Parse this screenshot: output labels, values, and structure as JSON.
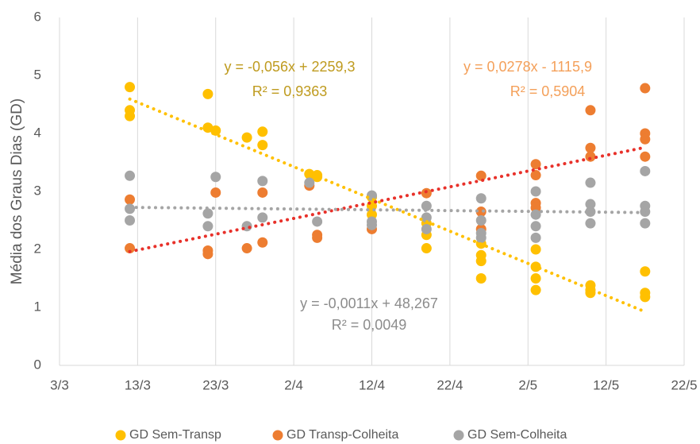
{
  "chart_data": {
    "type": "scatter",
    "y_label": "Média dos Graus Dias (GD)",
    "xlim": [
      "3/3",
      "22/5"
    ],
    "xticks": [
      "3/3",
      "13/3",
      "23/3",
      "2/4",
      "12/4",
      "22/4",
      "2/5",
      "12/5",
      "22/5"
    ],
    "ylim": [
      0,
      6
    ],
    "yticks": [
      0,
      1,
      2,
      3,
      4,
      5,
      6
    ],
    "grid": "x",
    "legend": "bottom",
    "series": [
      {
        "name": "GD  Sem-Transp",
        "color": "#ffc000",
        "trendline_color": "#ffc000",
        "x": [
          "12/3",
          "12/3",
          "12/3",
          "22/3",
          "22/3",
          "23/3",
          "27/3",
          "29/3",
          "29/3",
          "4/4",
          "5/4",
          "5/4",
          "12/4",
          "12/4",
          "12/4",
          "19/4",
          "19/4",
          "19/4",
          "26/4",
          "26/4",
          "26/4",
          "26/4",
          "3/5",
          "3/5",
          "3/5",
          "3/5",
          "10/5",
          "10/5",
          "10/5",
          "17/5",
          "17/5",
          "17/5"
        ],
        "values": [
          4.8,
          4.4,
          4.3,
          4.68,
          4.1,
          4.05,
          3.93,
          4.03,
          3.8,
          3.3,
          3.28,
          3.25,
          2.9,
          2.75,
          2.6,
          2.45,
          2.25,
          2.02,
          2.1,
          1.9,
          1.8,
          1.5,
          2.0,
          1.7,
          1.5,
          1.3,
          1.38,
          1.3,
          1.25,
          1.62,
          1.25,
          1.18
        ]
      },
      {
        "name": "GD Transp-Colheita",
        "color": "#ed7d31",
        "trendline_color": "#e8312a",
        "x": [
          "12/3",
          "12/3",
          "22/3",
          "22/3",
          "23/3",
          "27/3",
          "29/3",
          "29/3",
          "4/4",
          "5/4",
          "5/4",
          "12/4",
          "19/4",
          "26/4",
          "26/4",
          "26/4",
          "3/5",
          "3/5",
          "3/5",
          "3/5",
          "10/5",
          "10/5",
          "10/5",
          "17/5",
          "17/5",
          "17/5",
          "17/5"
        ],
        "values": [
          2.86,
          2.02,
          1.98,
          1.92,
          2.98,
          2.02,
          2.98,
          2.12,
          3.1,
          2.25,
          2.2,
          2.35,
          2.97,
          3.27,
          2.65,
          2.35,
          3.47,
          3.28,
          2.8,
          2.72,
          4.4,
          3.75,
          3.6,
          4.78,
          4.0,
          3.9,
          3.6
        ]
      },
      {
        "name": "GD Sem-Colheita",
        "color": "#a5a5a5",
        "trendline_color": "#a5a5a5",
        "x": [
          "12/3",
          "12/3",
          "12/3",
          "22/3",
          "22/3",
          "23/3",
          "27/3",
          "29/3",
          "29/3",
          "4/4",
          "5/4",
          "12/4",
          "12/4",
          "12/4",
          "19/4",
          "19/4",
          "19/4",
          "26/4",
          "26/4",
          "26/4",
          "26/4",
          "3/5",
          "3/5",
          "3/5",
          "3/5",
          "10/5",
          "10/5",
          "10/5",
          "10/5",
          "17/5",
          "17/5",
          "17/5",
          "17/5"
        ],
        "values": [
          3.27,
          2.7,
          2.5,
          2.62,
          2.4,
          3.25,
          2.4,
          3.18,
          2.55,
          3.15,
          2.48,
          2.93,
          2.48,
          2.42,
          2.75,
          2.55,
          2.35,
          2.88,
          2.5,
          2.28,
          2.2,
          3.0,
          2.6,
          2.4,
          2.2,
          3.15,
          2.78,
          2.65,
          2.45,
          3.35,
          2.75,
          2.65,
          2.45
        ]
      }
    ],
    "annotations": [
      {
        "series": 0,
        "equation": "y = -0,056x + 2259,3",
        "r2": "R² = 0,9363"
      },
      {
        "series": 1,
        "equation": "y = 0,0278x - 1115,9",
        "r2": "R² = 0,5904"
      },
      {
        "series": 2,
        "equation": "y = -0,0011x + 48,267",
        "r2": "R² = 0,0049"
      }
    ]
  }
}
